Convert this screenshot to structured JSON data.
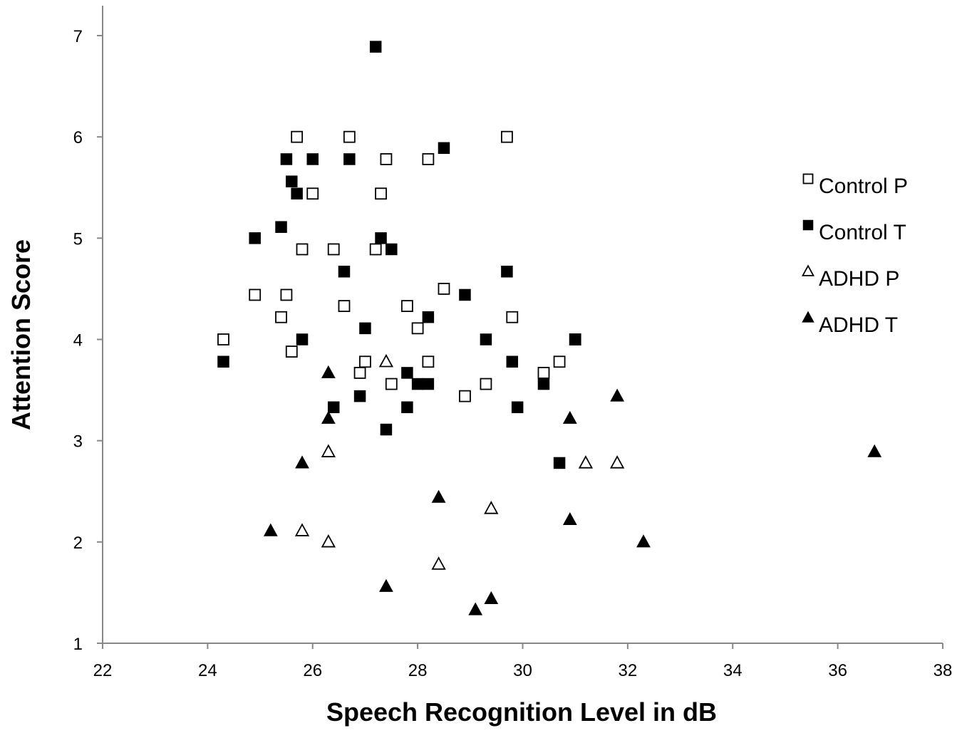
{
  "chart_data": {
    "type": "scatter",
    "title": "",
    "xlabel": "Speech Recognition Level in dB",
    "ylabel": "Attention Score",
    "xlim": [
      22,
      38
    ],
    "ylim": [
      1,
      7
    ],
    "xticks": [
      22,
      24,
      26,
      28,
      30,
      32,
      34,
      36,
      38
    ],
    "yticks": [
      1,
      2,
      3,
      4,
      5,
      6,
      7
    ],
    "grid": false,
    "legend_position": "right",
    "series": [
      {
        "name": "Control P",
        "marker": "square-open",
        "points": [
          [
            24.3,
            4.0
          ],
          [
            24.9,
            4.44
          ],
          [
            25.4,
            4.22
          ],
          [
            25.5,
            4.44
          ],
          [
            25.6,
            3.88
          ],
          [
            25.7,
            6.0
          ],
          [
            25.8,
            4.89
          ],
          [
            26.0,
            5.44
          ],
          [
            26.4,
            4.89
          ],
          [
            26.6,
            4.33
          ],
          [
            26.7,
            6.0
          ],
          [
            26.9,
            3.67
          ],
          [
            27.0,
            3.78
          ],
          [
            27.2,
            4.89
          ],
          [
            27.3,
            5.44
          ],
          [
            27.4,
            5.78
          ],
          [
            27.5,
            3.56
          ],
          [
            27.8,
            4.33
          ],
          [
            28.0,
            4.11
          ],
          [
            28.2,
            5.78
          ],
          [
            28.2,
            3.78
          ],
          [
            28.5,
            4.5
          ],
          [
            28.9,
            3.44
          ],
          [
            29.3,
            3.56
          ],
          [
            29.7,
            6.0
          ],
          [
            29.8,
            4.22
          ],
          [
            30.4,
            3.67
          ],
          [
            30.7,
            3.78
          ],
          [
            31.0,
            4.0
          ]
        ]
      },
      {
        "name": "Control T",
        "marker": "square-filled",
        "points": [
          [
            24.3,
            3.78
          ],
          [
            24.9,
            5.0
          ],
          [
            25.4,
            5.11
          ],
          [
            25.5,
            5.78
          ],
          [
            25.6,
            5.56
          ],
          [
            25.7,
            5.44
          ],
          [
            25.8,
            4.0
          ],
          [
            26.0,
            5.78
          ],
          [
            26.4,
            3.33
          ],
          [
            26.6,
            4.67
          ],
          [
            26.7,
            5.78
          ],
          [
            26.9,
            3.44
          ],
          [
            27.0,
            4.11
          ],
          [
            27.2,
            6.89
          ],
          [
            27.3,
            5.0
          ],
          [
            27.4,
            3.11
          ],
          [
            27.5,
            4.89
          ],
          [
            27.8,
            3.67
          ],
          [
            27.8,
            3.33
          ],
          [
            28.0,
            3.56
          ],
          [
            28.2,
            3.56
          ],
          [
            28.2,
            4.22
          ],
          [
            28.5,
            5.89
          ],
          [
            28.9,
            4.44
          ],
          [
            29.3,
            4.0
          ],
          [
            29.7,
            4.67
          ],
          [
            29.8,
            3.78
          ],
          [
            29.9,
            3.33
          ],
          [
            30.4,
            3.56
          ],
          [
            30.7,
            2.78
          ],
          [
            31.0,
            4.0
          ]
        ]
      },
      {
        "name": "ADHD P",
        "marker": "triangle-open",
        "points": [
          [
            25.8,
            2.11
          ],
          [
            26.3,
            2.0
          ],
          [
            26.3,
            2.89
          ],
          [
            27.4,
            3.78
          ],
          [
            28.4,
            1.78
          ],
          [
            29.4,
            2.33
          ],
          [
            31.2,
            2.78
          ],
          [
            31.8,
            2.78
          ]
        ]
      },
      {
        "name": "ADHD T",
        "marker": "triangle-filled",
        "points": [
          [
            25.2,
            2.11
          ],
          [
            25.8,
            2.78
          ],
          [
            26.3,
            3.67
          ],
          [
            26.3,
            3.22
          ],
          [
            27.4,
            1.56
          ],
          [
            28.4,
            2.44
          ],
          [
            29.1,
            1.33
          ],
          [
            29.4,
            1.44
          ],
          [
            30.9,
            3.22
          ],
          [
            30.9,
            2.22
          ],
          [
            31.8,
            3.44
          ],
          [
            32.3,
            2.0
          ],
          [
            36.7,
            2.89
          ]
        ]
      }
    ]
  }
}
